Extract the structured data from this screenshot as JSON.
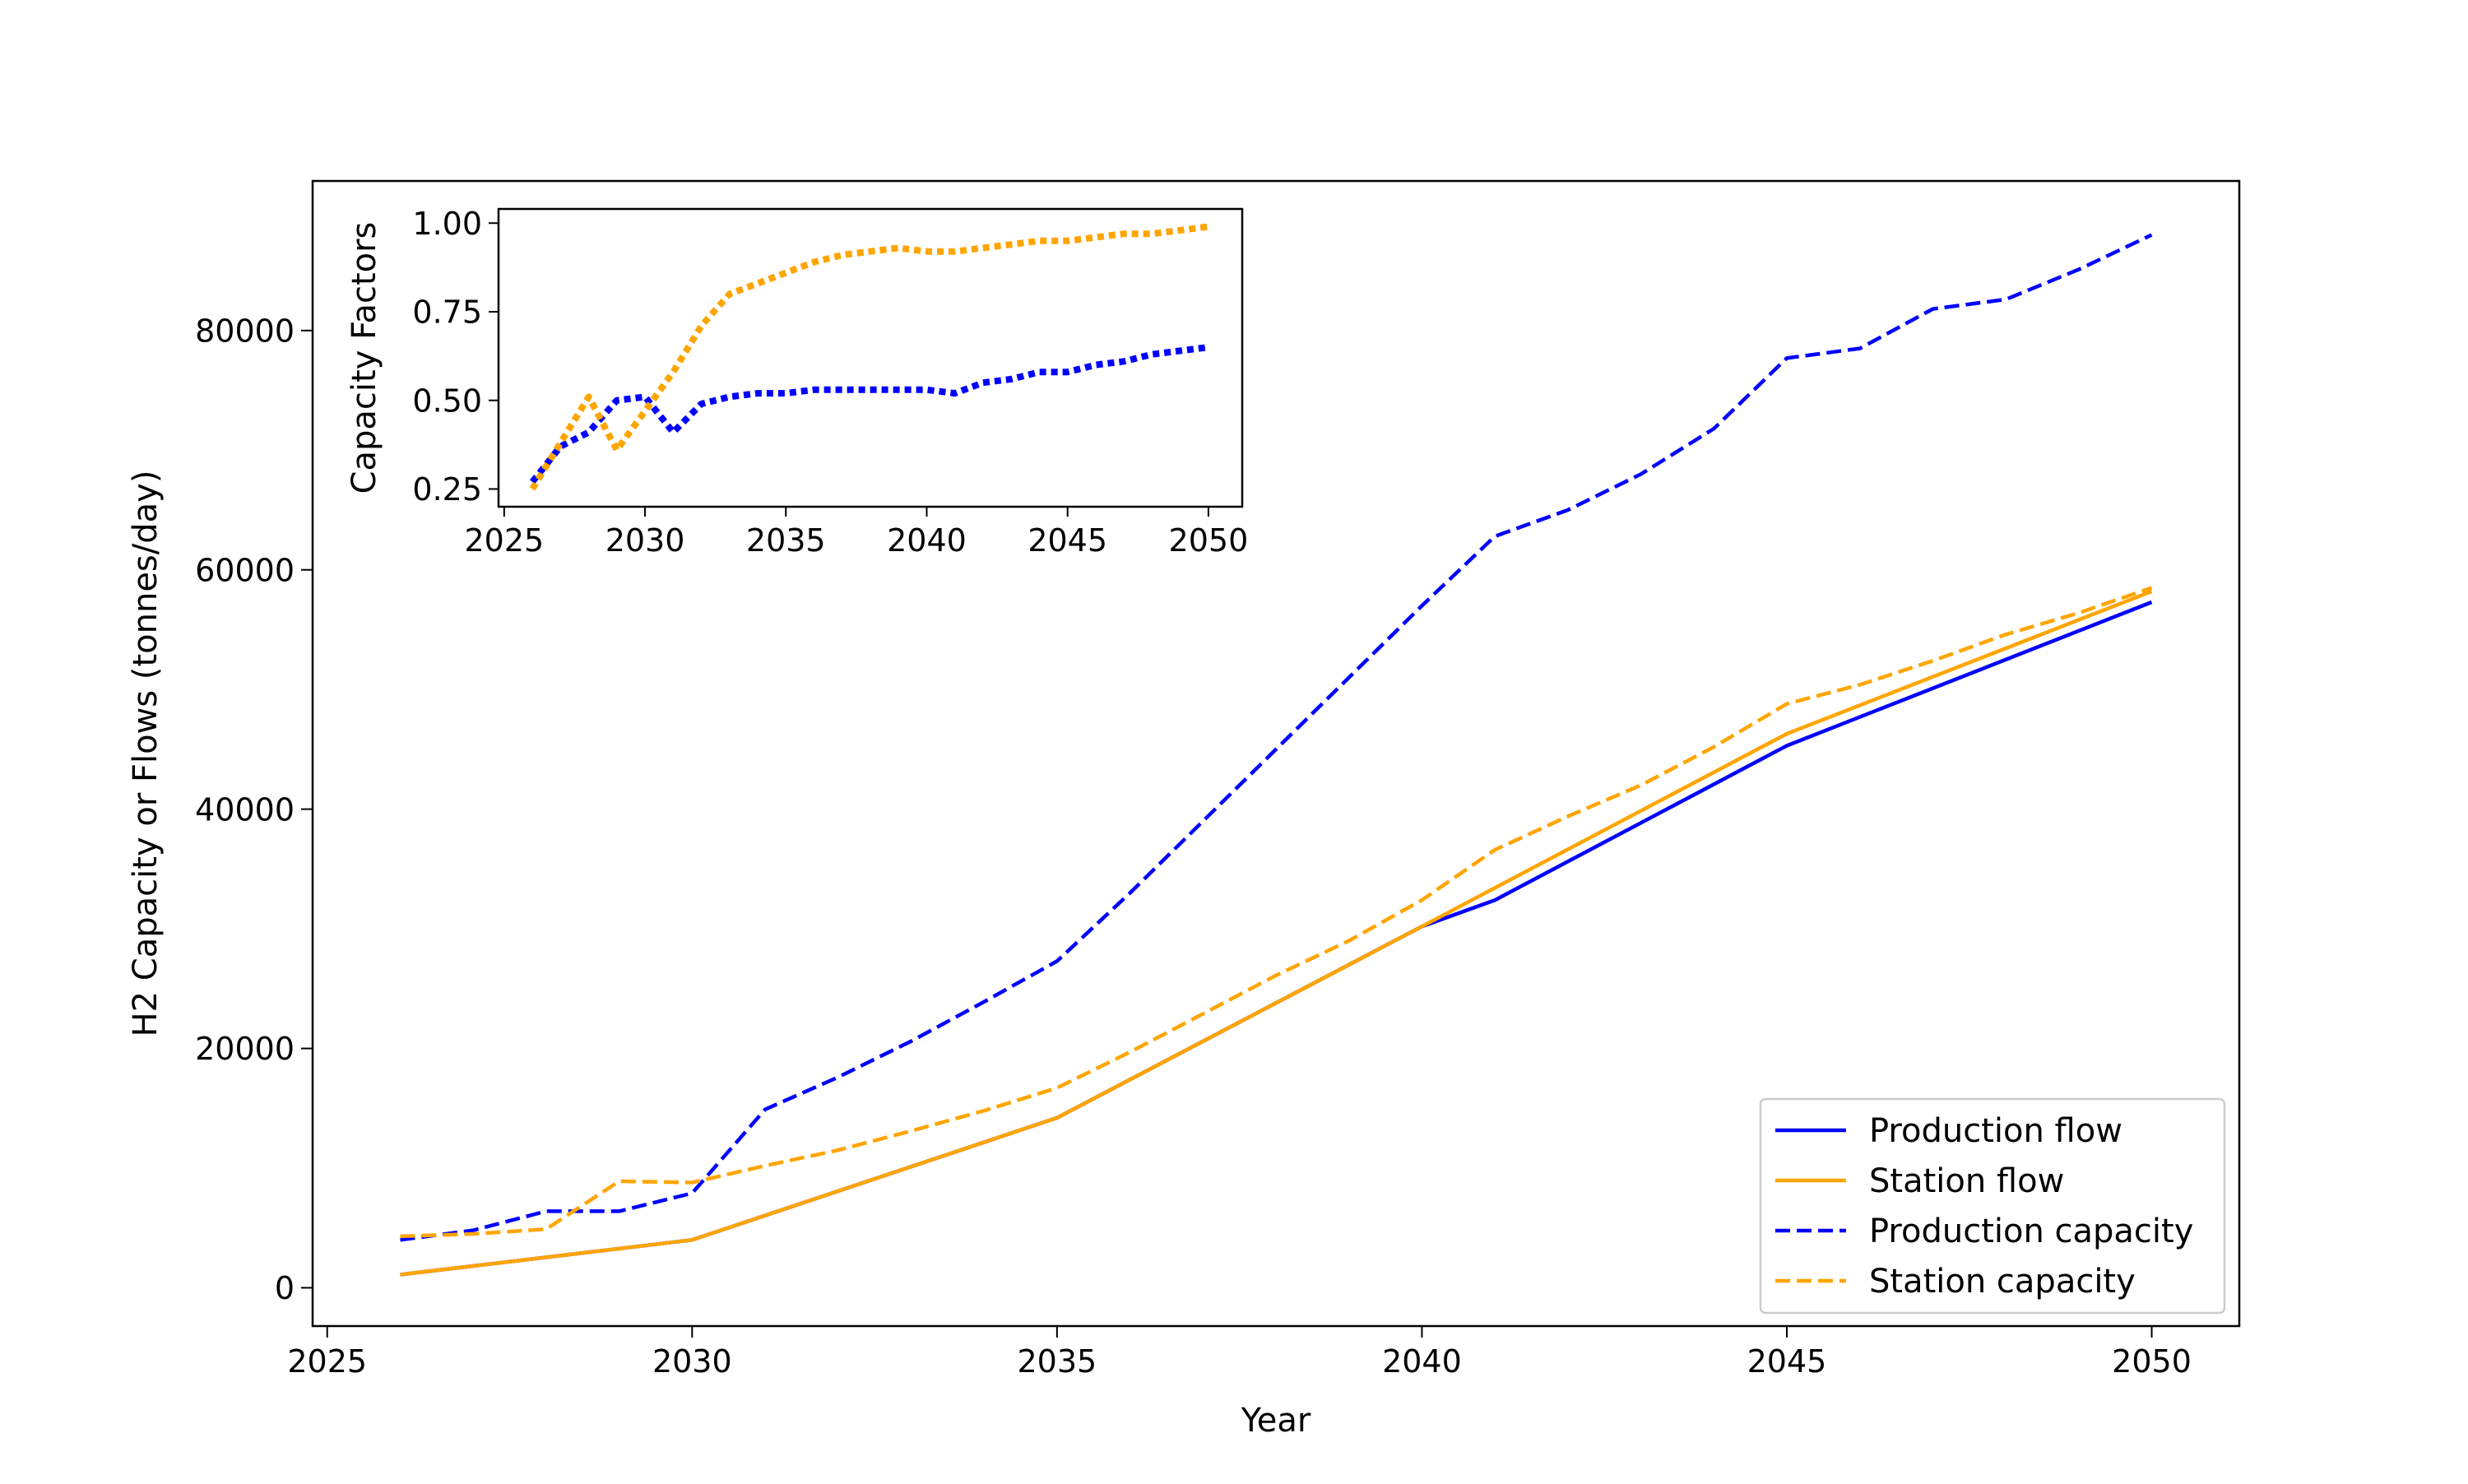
{
  "chart_data": [
    {
      "id": "main",
      "type": "line",
      "title": "",
      "xlabel": "Year",
      "ylabel": "H2 Capacity or Flows (tonnes/day)",
      "xlim": [
        2024.8,
        2051.2
      ],
      "ylim": [
        -3200,
        92500
      ],
      "xticks": [
        2025,
        2030,
        2035,
        2040,
        2045,
        2050
      ],
      "yticks": [
        0,
        20000,
        40000,
        60000,
        80000
      ],
      "grid": false,
      "legend_position": "lower-right",
      "series": [
        {
          "name": "Production flow",
          "color": "#0000ff",
          "style": "solid",
          "x": [
            2026,
            2030,
            2035,
            2040,
            2041,
            2045,
            2050
          ],
          "y": [
            1100,
            4000,
            14200,
            30200,
            32400,
            45300,
            57300
          ]
        },
        {
          "name": "Station flow",
          "color": "#ffa500",
          "style": "solid",
          "x": [
            2026,
            2030,
            2035,
            2040,
            2045,
            2050
          ],
          "y": [
            1100,
            4000,
            14200,
            30200,
            46300,
            58200
          ]
        },
        {
          "name": "Production capacity",
          "color": "#0000ff",
          "style": "dashed",
          "x": [
            2026,
            2027,
            2028,
            2029,
            2030,
            2031,
            2032,
            2033,
            2034,
            2035,
            2036,
            2037,
            2038,
            2039,
            2040,
            2041,
            2042,
            2043,
            2044,
            2045,
            2046,
            2047,
            2048,
            2049,
            2050
          ],
          "y": [
            4000,
            4800,
            6400,
            6400,
            7900,
            14900,
            17600,
            20600,
            23900,
            27300,
            33000,
            39000,
            45000,
            51000,
            57000,
            62800,
            65000,
            68000,
            71800,
            77700,
            78500,
            81800,
            82600,
            85100,
            88000
          ]
        },
        {
          "name": "Station capacity",
          "color": "#ffa500",
          "style": "dashed",
          "x": [
            2026,
            2027,
            2028,
            2029,
            2030,
            2031,
            2032,
            2033,
            2034,
            2035,
            2036,
            2037,
            2038,
            2039,
            2040,
            2041,
            2042,
            2043,
            2044,
            2045,
            2046,
            2047,
            2048,
            2049,
            2050
          ],
          "y": [
            4300,
            4500,
            4900,
            8900,
            8800,
            10200,
            11500,
            13100,
            14800,
            16700,
            19700,
            22900,
            26100,
            29000,
            32400,
            36600,
            39400,
            42000,
            45200,
            48800,
            50400,
            52400,
            54600,
            56400,
            58500
          ]
        }
      ]
    },
    {
      "id": "inset",
      "type": "line",
      "title": "",
      "xlabel": "",
      "ylabel": "Capacity Factors",
      "xlim": [
        2024.8,
        2051.2
      ],
      "ylim": [
        0.2,
        1.04
      ],
      "xticks": [
        2025,
        2030,
        2035,
        2040,
        2045,
        2050
      ],
      "yticks": [
        0.25,
        0.5,
        0.75,
        1.0
      ],
      "ytick_labels": [
        "0.25",
        "0.50",
        "0.75",
        "1.00"
      ],
      "grid": false,
      "series": [
        {
          "color": "#0000ff",
          "style": "dotted",
          "x": [
            2026,
            2027,
            2028,
            2029,
            2030,
            2031,
            2032,
            2033,
            2034,
            2035,
            2036,
            2037,
            2038,
            2039,
            2040,
            2041,
            2042,
            2043,
            2044,
            2045,
            2046,
            2047,
            2048,
            2049,
            2050
          ],
          "y": [
            0.27,
            0.37,
            0.41,
            0.5,
            0.51,
            0.41,
            0.49,
            0.51,
            0.52,
            0.52,
            0.53,
            0.53,
            0.53,
            0.53,
            0.53,
            0.52,
            0.55,
            0.56,
            0.58,
            0.58,
            0.6,
            0.61,
            0.63,
            0.64,
            0.65
          ]
        },
        {
          "color": "#ffa500",
          "style": "dotted",
          "x": [
            2026,
            2027,
            2028,
            2029,
            2030,
            2031,
            2032,
            2033,
            2034,
            2035,
            2036,
            2037,
            2038,
            2039,
            2040,
            2041,
            2042,
            2043,
            2044,
            2045,
            2046,
            2047,
            2048,
            2049,
            2050
          ],
          "y": [
            0.25,
            0.38,
            0.51,
            0.36,
            0.47,
            0.58,
            0.71,
            0.8,
            0.83,
            0.86,
            0.89,
            0.91,
            0.92,
            0.93,
            0.92,
            0.92,
            0.93,
            0.94,
            0.95,
            0.95,
            0.96,
            0.97,
            0.97,
            0.98,
            0.99
          ]
        }
      ]
    }
  ]
}
